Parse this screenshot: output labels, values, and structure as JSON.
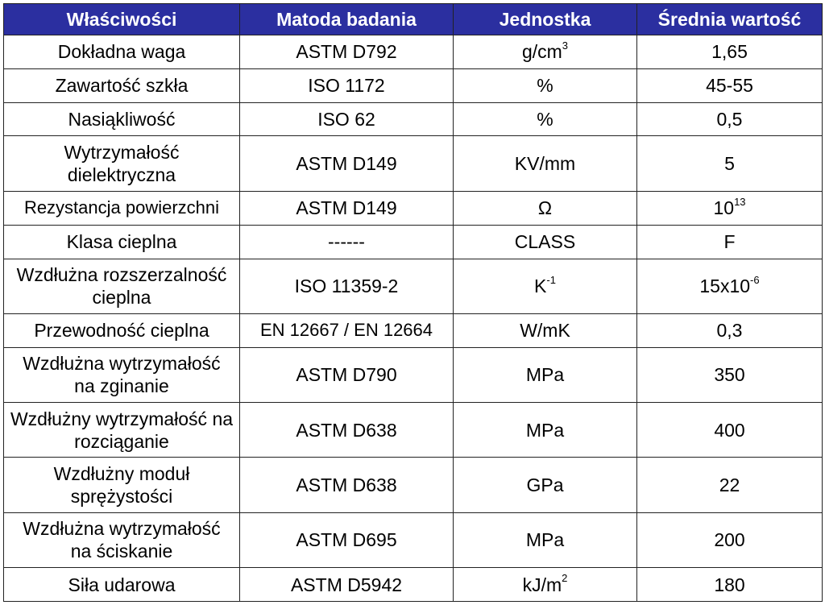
{
  "headers": {
    "property": "Właściwości",
    "method": "Matoda badania",
    "unit": "Jednostka",
    "value": "Średnia wartość"
  },
  "rows": [
    {
      "property": "Dokładna waga",
      "method": "ASTM D792",
      "unit": "g/cm",
      "unit_sup": "3",
      "value": "1,65",
      "value_sup": ""
    },
    {
      "property": "Zawartość szkła",
      "method": "ISO 1172",
      "unit": "%",
      "unit_sup": "",
      "value": "45-55",
      "value_sup": ""
    },
    {
      "property": "Nasiąkliwość",
      "method": "ISO 62",
      "unit": "%",
      "unit_sup": "",
      "value": "0,5",
      "value_sup": ""
    },
    {
      "property": "Wytrzymałość dielektryczna",
      "method": "ASTM D149",
      "unit": "KV/mm",
      "unit_sup": "",
      "value": "5",
      "value_sup": ""
    },
    {
      "property": "Rezystancja powierzchni",
      "method": "ASTM D149",
      "unit": "Ω",
      "unit_sup": "",
      "value": "10",
      "value_sup": "13"
    },
    {
      "property": "Klasa cieplna",
      "method": "------",
      "unit": "CLASS",
      "unit_sup": "",
      "value": "F",
      "value_sup": ""
    },
    {
      "property": "Wzdłużna rozszerzalność cieplna",
      "method": "ISO 11359-2",
      "unit": "K",
      "unit_sup": "-1",
      "value": "15x10",
      "value_sup": "-6"
    },
    {
      "property": "Przewodność cieplna",
      "method": "EN 12667 / EN 12664",
      "unit": "W/mK",
      "unit_sup": "",
      "value": "0,3",
      "value_sup": ""
    },
    {
      "property": "Wzdłużna wytrzymałość na zginanie",
      "method": "ASTM D790",
      "unit": "MPa",
      "unit_sup": "",
      "value": "350",
      "value_sup": ""
    },
    {
      "property": "Wzdłużny wytrzymałość na rozciąganie",
      "method": "ASTM D638",
      "unit": "MPa",
      "unit_sup": "",
      "value": "400",
      "value_sup": ""
    },
    {
      "property": "Wzdłużny moduł sprężystości",
      "method": "ASTM D638",
      "unit": "GPa",
      "unit_sup": "",
      "value": "22",
      "value_sup": ""
    },
    {
      "property": "Wzdłużna wytrzymałość na ściskanie",
      "method": "ASTM D695",
      "unit": "MPa",
      "unit_sup": "",
      "value": "200",
      "value_sup": ""
    },
    {
      "property": "Siła udarowa",
      "method": "ASTM D5942",
      "unit": "kJ/m",
      "unit_sup": "2",
      "value": "180",
      "value_sup": ""
    }
  ],
  "colors": {
    "header_bg": "#2b2fa0",
    "header_text": "#ffffff",
    "border": "#222222"
  }
}
